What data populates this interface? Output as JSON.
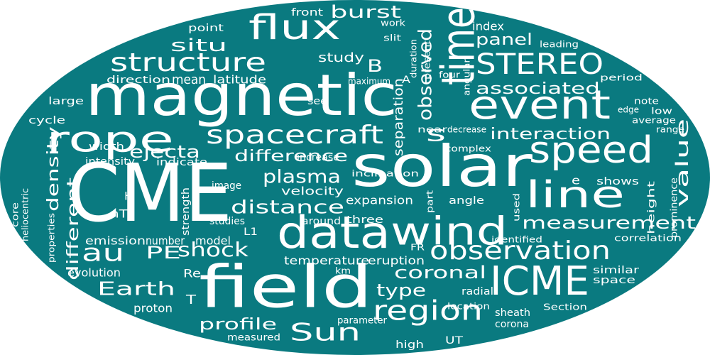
{
  "colors": {
    "background": "#ffffff",
    "shape": "#0a7a80",
    "text": "#ffffff"
  },
  "words": [
    "CME",
    "magnetic",
    "solar",
    "field",
    "data",
    "time",
    "event",
    "wind",
    "ICME",
    "speed",
    "rope",
    "line",
    "flux",
    "spacecraft",
    "observation",
    "structure",
    "region",
    "STEREO",
    "Sun",
    "Earth",
    "au",
    "shock",
    "burst",
    "plasma",
    "distance",
    "observed",
    "measurement",
    "interaction",
    "coronal",
    "ejecta",
    "situ",
    "panel",
    "difference",
    "value",
    "type",
    "associated",
    "density",
    "different",
    "profile",
    "PE",
    "s",
    "B",
    "expansion",
    "velocity",
    "separation",
    "study",
    "mean",
    "latitude",
    "index",
    "emission",
    "number",
    "model",
    "strength",
    "proton",
    "evolution",
    "temperature",
    "eruption",
    "three",
    "around",
    "studies",
    "L1",
    "angle",
    "image",
    "indicate",
    "width",
    "intensity",
    "similar",
    "space",
    "shows",
    "height",
    "prominence",
    "correlation",
    "average",
    "low",
    "edge",
    "note",
    "period",
    "leading",
    "cycle",
    "large",
    "direction",
    "point",
    "front",
    "inclination",
    "near",
    "decrease",
    "complex",
    "km",
    "radial",
    "location",
    "sheath",
    "corona",
    "Section",
    "UT",
    "high",
    "parameter",
    "measured",
    "maximum",
    "duration",
    "present",
    "four",
    "angular",
    "used",
    "part",
    "FR",
    "identified",
    "properties",
    "core",
    "heliocentric",
    "nT",
    "Re",
    "T",
    "H",
    "e",
    "A",
    "see",
    "increase",
    "work",
    "slit",
    "range"
  ]
}
